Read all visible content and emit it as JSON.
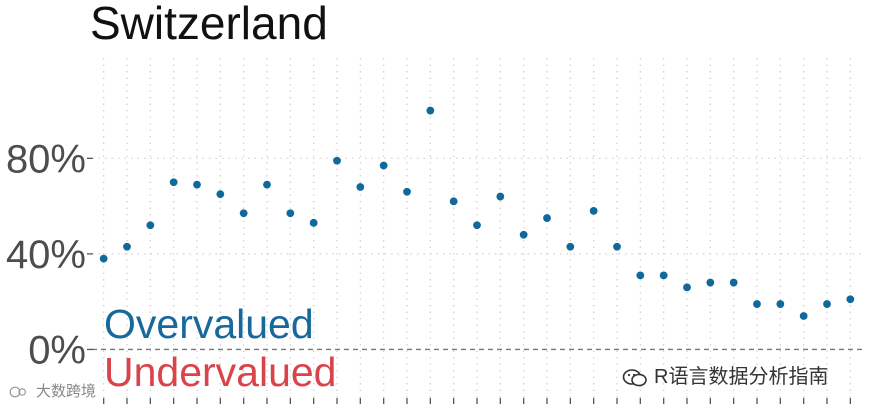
{
  "chart_data": {
    "type": "scatter",
    "title": "Switzerland",
    "xlabel": "",
    "ylabel": "",
    "x": [
      1,
      2,
      3,
      4,
      5,
      6,
      7,
      8,
      9,
      10,
      11,
      12,
      13,
      14,
      15,
      16,
      17,
      18,
      19,
      20,
      21,
      22,
      23,
      24,
      25,
      26,
      27,
      28,
      29,
      30,
      31,
      32,
      33
    ],
    "y": [
      38,
      43,
      52,
      70,
      69,
      65,
      57,
      69,
      57,
      53,
      79,
      68,
      77,
      66,
      100,
      62,
      52,
      64,
      48,
      55,
      43,
      58,
      43,
      31,
      31,
      26,
      28,
      28,
      19,
      19,
      14,
      19,
      21
    ],
    "xlim": [
      0.5,
      33.5
    ],
    "ylim": [
      -22,
      122
    ],
    "yticks": [
      0,
      40,
      80
    ],
    "ytick_labels": [
      "0%",
      "40%",
      "80%"
    ],
    "grid": true,
    "point_color": "#0f6a9b",
    "reference_line": {
      "y": 0,
      "style": "dashed"
    },
    "annotations": [
      {
        "text": "Overvalued",
        "color": "#17689b",
        "side": "above-zero"
      },
      {
        "text": "Undervalued",
        "color": "#d9444a",
        "side": "below-zero"
      }
    ]
  },
  "watermarks": {
    "right_text": "R语言数据分析指南",
    "left_text": "大数跨境",
    "right_icon": "wechat-icon",
    "left_icon": "logo-icon"
  }
}
